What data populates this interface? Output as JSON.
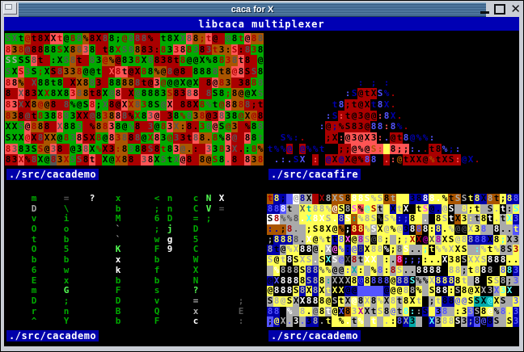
{
  "window": {
    "title": "caca for X",
    "banner": "libcaca multiplexer"
  },
  "titlebar": {
    "close_glyph": "✕"
  },
  "label_colors": {
    "bg": "#0000AA",
    "fg": "#FFFFFF"
  },
  "palette": {
    "0": "#000000",
    "1": "#0000AA",
    "2": "#00AA00",
    "3": "#00AAAA",
    "4": "#AA0000",
    "5": "#AA00AA",
    "6": "#AA5500",
    "7": "#AAAAAA",
    "8": "#555555",
    "9": "#5555FF",
    "a": "#55FF55",
    "b": "#55FFFF",
    "c": "#FF5555",
    "d": "#FF55FF",
    "e": "#FFFF55",
    "f": "#FFFFFF"
  },
  "quadrants": [
    {
      "id": "tl",
      "label": "./src/cacademo",
      "rows": [
        {
          "t": "SXt@t8XXt@88%8X88;@888%8t8XX88;t@8@8t@88",
          "f": "8804000040480008004888040008804404804048",
          "b": "2226444cc2226444222244442222c66c44222c66"
        },
        {
          "t": "838@8888SX88388t8XS8883:83388383t3:S:838",
          "f": "4048000040088040048800004040480840040840",
          "b": "c66444222266c2442222644422cc2244666c4422"
        },
        {
          "t": "SSSS8t8:XS8tS83@%@838X8838t8@@X%8838t8X@",
          "f": "7700804008804804000040800004000004480040",
          "b": "2222c4422264422664222224444222222266c442"
        },
        {
          "t": "SXS3S;XS8338@@t;X8t@X88%@8@838888t8@8SS8",
          "f": "8048040080040004c40004000800400080040080",
          "b": "22c22224466622244cc4422664444222266cc442"
        },
        {
          "t": "88%@X88t88XX883888888t@3@@@X@X38@83@3888",
          "f": "4004800004000804000080004000004004040048",
          "b": "cc644222244662442266444c22222244c6644422"
        },
        {
          "t": "83X83XX8X8388t8X@8SX@8883S8388t8S8;8@@XS",
          "f": "0480004000480000804080000400804800400008",
          "b": "44c4422222c664422c4422222644cc4422266222"
        },
        {
          "t": "83XX8@@838%@S8;X8@XX838S@X@88X8%t@8888;t",
          "f": "4080040048000408000484008040004804004800",
          "b": "cc44666444222c2244c662222c44442222c66444"
        },
        {
          "t": "838@t838883XX@83888%X83@838%838@3838@X@8",
          "f": "4008040048000804008040804004804008004040",
          "b": "66444222c22444266c4422cc442226644c222664"
        },
        {
          "t": "XXS@888SX8838%8838@%8S3@83X:8.38@S@38%88",
          "f": "0080400480084004000804804080004800404008",
          "b": "222c6644c2224466c22244422c664422c2264422"
        },
        {
          "t": "SXX@X8XX@838SX8@83888@X83@33t88.8%8@X88t",
          "f": "0004080004800040048080400480080040084008",
          "b": "222c4466222c4422c664422c22444c6622c44c22"
        },
        {
          "t": "8383SS@38%@38X%X3:8388S8t83@.:83383X.:8%",
          "f": "4800040804008040040800804008004804080040",
          "b": "cc22266c4422c2244662244422c6644c22c44226"
        },
        {
          "t": "83X%8X@83XSS8t8X@X88838XStX@888@S8.8@838",
          "f": "0040800404880040040048008080040040804004",
          "b": "44c4422866244c4226644cc2222c446622c44c66"
        }
      ]
    },
    {
      "id": "tr",
      "label": "./src/cacafire",
      "rows": [
        {
          "t": "",
          "f": "",
          "b": ""
        },
        {
          "t": "",
          "f": "",
          "b": ""
        },
        {
          "t": "",
          "f": "",
          "b": ""
        },
        {
          "t": "",
          "f": "",
          "b": ""
        },
        {
          "t": "              : ; :                     ",
          "f": "0000000000000010101000000000000000000000",
          "b": ""
        },
        {
          "t": "            :S@tXS%.                    ",
          "f": "0000000000009100091400000000000000000000",
          "b": "0000000000000044400000000000000000000000"
        },
        {
          "t": "          t8;t@Xt8X.                    ",
          "f": "0000000000190000191400000000000000000000",
          "b": "0000000000004444000000000000000000000000"
        },
        {
          "t": "         :S:t@3@@:8X.                   ",
          "f": "00000000091c00000c9140000000000000000000",
          "b": "0000000000044444400000000000000000000000"
        },
        {
          "t": "        :@;%S83@88:8%.                  ",
          "f": "000000009010000099c914000000000000000000",
          "b": "0000000004444444000000000000000000000000"
        },
        {
          "t": "  S%:.   ;X:@3@X3:.@t8@%%:              ",
          "f": "00111400000c00000c9009111900000000000000",
          "b": "000000000440ccccc00440000000000000000000"
        },
        {
          "t": "t%%@;@%%t  ;;@%@S: 8;;:..t8%;:          ",
          "f": "1111011110000000660000994009190000000000",
          "b": "0004040000044ccccceccc000440000000000000"
        },
        {
          "t": " .:.SX;:S@X@X@%88;.:@tXX@%tXS:@X.       ",
          "f": "0999190c0101000990cc600006000c1140000000",
          "b": "0000000404444444004004444444440000000000"
        }
      ]
    },
    {
      "id": "bl",
      "label": "./src/cacademo",
      "rows": [
        {
          "t": "    m    =   ?   x     < n   c N X      ",
          "f": "0000200008000f00020000020200020a0f000000",
          "b": ""
        },
        {
          "t": "    D    \\       b     ; n   C V =      ",
          "f": "0000700002000000020000020200020a08000000",
          "b": ""
        },
        {
          "t": "    v    i       M     6 D   = ;        ",
          "f": "0000200002000000020000020200020200000000",
          "b": ""
        },
        {
          "t": "    O    o       `     ; j   D          ",
          "f": "0000200002000000070000020a00020000000000",
          "b": ""
        },
        {
          "t": "    t    b       `     w g   5          ",
          "f": "0000200002000000070000020f00020000000000",
          "b": ""
        },
        {
          "t": "    O    5       K     F 9   C          ",
          "f": "00002000020000000a0000020f00020000000000",
          "b": ""
        },
        {
          "t": "    b    b       x     b     W          ",
          "f": "00002000020000000f0000020000020000000000",
          "b": ""
        },
        {
          "t": "    6    w       k     f     X          ",
          "f": "00002000020000000f0000020000020000000000",
          "b": ""
        },
        {
          "t": "    E    x       b     b     N          ",
          "f": "0000200002000000020000020000020000000000",
          "b": ""
        },
        {
          "t": "    m    G       F     s     ?          ",
          "f": "000020000a0000000200000200000a0000000000",
          "b": ""
        },
        {
          "t": "    D    ;       D     v     =      ;   ",
          "f": "0000200002000000020000020000070000008000",
          "b": ""
        },
        {
          "t": "    r    n       B     Q     x      E   ",
          "f": "0000200002000000020000020000070000008000",
          "b": ""
        },
        {
          "t": "    ^    Y       b     F     c      :   ",
          "f": "00002000020000000200000200000f0000008000",
          "b": ""
        }
      ]
    },
    {
      "id": "br",
      "label": "./src/cacademo",
      "rows": [
        {
          "t": "t8;8@8XXX8XS888S%S8ttS3888.%tSSt8X8t;88t",
          "f": "4e09710447770fff7707ee00fff0077ee0700e97",
          "b": "6119f77400666eeeee66ee111eee66001166e110"
        },
        {
          "t": "888t;Xt88%@S8S%@St8XtX;tS@.@SX8;t:S.t:S8",
          "f": "99f0783777f07d0b40e07f00d007f7e00707f0b7",
          "b": "11977eeeee6e0ecee7e1e00ee11e077ee77e07e1"
        },
        {
          "t": "S8%%8.X8XS.8S:%8S%S%:;88.88StX3:t8t.tX38",
          "f": "04888fbff7f7f3777877990ef007f00e00f70b97",
          "b": "ff777eeeeee1e6eee0ee11ee70ee06e77e0e7e11"
        },
        {
          "t": ":.;8.t;S8X@%;88%SX@%@3888:8.%@@X38.8..t8",
          "f": "110487000000fee7f07070f9f0e07887097f00e7",
          "b": "666777eeeee6044e7eeee1060e1ee00ee7707790"
        },
        {
          "t": ";8888.X@%tt8X@8S@8;X;;XX@X8XS@8888X8;X38",
          "f": "7eee80f07009d05787070744585007779900b007",
          "b": "011177eeee1e0e7e0ee7eee00e7eeee1111ee777"
        },
        {
          "t": "8t@%X88@.X@%:@8X88%;8S..;t%%XXS%:%t%8S38",
          "f": "70077ff00fd9098077f08f00be777007b7070047",
          "b": "117ee007e70e1e1eee0e7e77e0eeeee77eee77e0"
        },
        {
          "t": "S@t8SXS.SXS@X8tXX;:.8;;;:..X38SXXS888..8",
          "f": "707f077f0bf9840ff700d999000f007777fff007",
          "b": "eee0eee7e077077ee7e74000eee0ee0eee000ee1"
        },
        {
          "t": "X%888S88%%@@:X:;%8:8S..8888388;t888@8838",
          "f": "7f777077880093070904700ffff077007f709b97",
          "b": "7e000e11ee77e7e7e7e7e7700000ee7ee000e011"
        },
        {
          "t": "@X8888S88:XXX8@8888@88S%%X8888t888SS8;38",
          "f": "09fff07703777090999077b007eee077f0077097",
          "b": "10000e11e7000e1e000e11077e111ee700ee0771"
        },
        {
          "t": "@888S8X8XtXX@@8888@@@88%tS88:S8@XX3X3X38",
          "f": "0fff07070eee00999900077070ff07000779bb07",
          "b": "e000e1e1e7001199991eee0e7e00e0eee007e001"
        },
        {
          "t": "S8@SXX888@StX@8X8%X8t8Xt8;t88@@SSX@XS@38",
          "f": "07700fff00700f07070700070070099000b00797",
          "b": "7eee7000ee0e7e7e7e7e7eee07e11eee333e77e1"
        },
        {
          "t": "88X%88.@8t@X83XXtS8@t8::S838.:33S8@%8.38",
          "f": "990f77080f09075007090bb70e09700770f0979b",
          "b": "11077ee7e7e06ee77e7e7e001e977ee90ee77e10"
        },
        {
          "t": ";@X.3.38.t;%.t%.t..:8X38@X388S3;8@8S;S38",
          "f": "0e79f9077ee0f0f7f77097070b077f0709007097",
          "b": "9107071100eee7e7e7ee0137017ee07190177e11"
        }
      ]
    }
  ]
}
